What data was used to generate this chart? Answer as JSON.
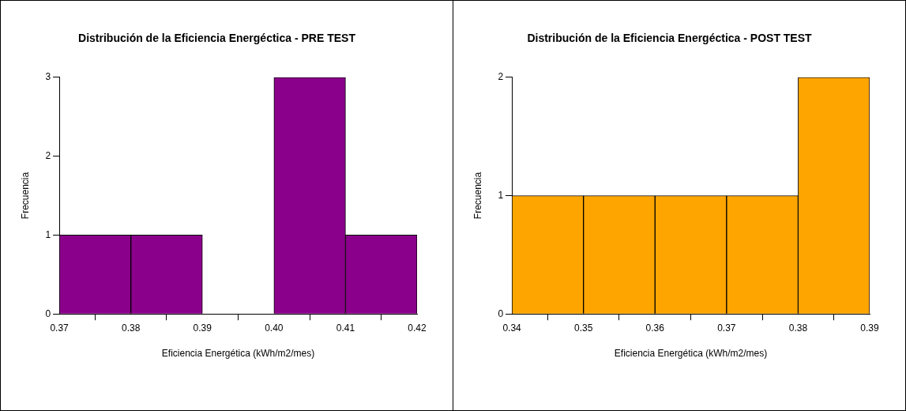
{
  "chart_data": [
    {
      "type": "histogram",
      "title": "Distribución de la Eficiencia Energéctica - PRE TEST",
      "xlabel": "Eficiencia Energética (kWh/m2/mes)",
      "ylabel": "Frecuencia",
      "bins": [
        0.37,
        0.38,
        0.39,
        0.4,
        0.41,
        0.42
      ],
      "values": [
        1,
        1,
        0,
        3,
        1
      ],
      "color": "#8b008b",
      "xlim": [
        0.37,
        0.42
      ],
      "xticks": [
        0.37,
        0.38,
        0.39,
        {
          "value": 0.4,
          "label": "0.40"
        },
        0.41,
        0.42
      ],
      "ylim": [
        0,
        3
      ],
      "yticks": [
        0,
        1,
        2,
        3
      ],
      "grid": false,
      "legend": false
    },
    {
      "type": "histogram",
      "title": "Distribución de la Eficiencia Energéctica - POST TEST",
      "xlabel": "Eficiencia Energética (kWh/m2/mes)",
      "ylabel": "Frecuencia",
      "bins": [
        0.34,
        0.35,
        0.36,
        0.37,
        0.38,
        0.39
      ],
      "values": [
        1,
        1,
        1,
        1,
        2
      ],
      "color": "#ffa500",
      "xlim": [
        0.34,
        0.39
      ],
      "xticks": [
        0.34,
        0.35,
        0.36,
        0.37,
        0.38,
        0.39
      ],
      "ylim": [
        0,
        2
      ],
      "yticks": [
        0,
        1,
        2
      ],
      "grid": false,
      "legend": false
    }
  ]
}
